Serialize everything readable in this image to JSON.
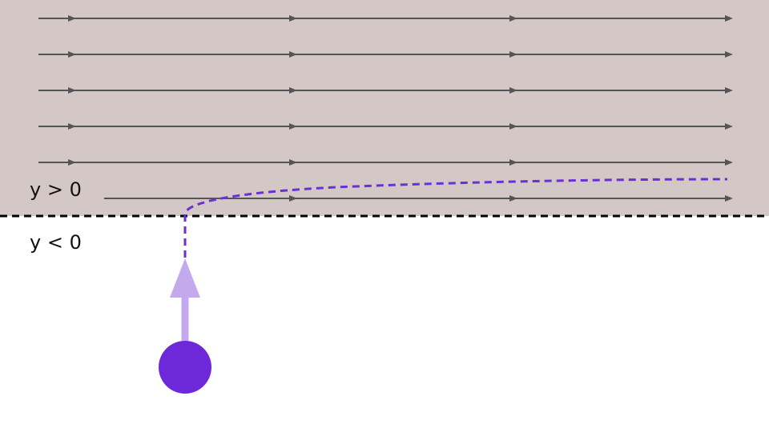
{
  "labels": {
    "upper_region": "y > 0",
    "lower_region": "y < 0"
  },
  "colors": {
    "upper_region_fill": "#d3c8c6",
    "flow_line": "#555555",
    "boundary": "#000000",
    "trajectory": "#6a2fd6",
    "velocity_arrow": "#c4a9ee",
    "particle": "#6d28d9"
  },
  "flow": {
    "direction": "right",
    "stream_count": 6
  }
}
